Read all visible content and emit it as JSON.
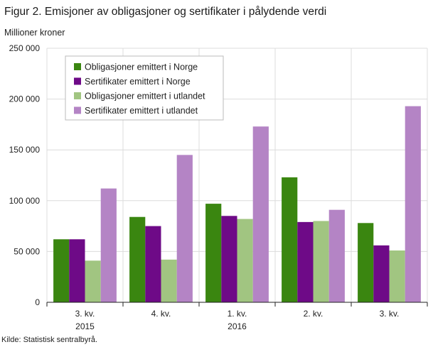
{
  "title": "Figur 2. Emisjoner av obligasjoner og sertifikater i pålydende verdi",
  "source": "Kilde: Statistisk sentralbyrå.",
  "chart_data": {
    "type": "bar",
    "ylabel": "Millioner  kroner",
    "xlabel": "",
    "ylim": [
      0,
      250000
    ],
    "yticks": [
      0,
      50000,
      100000,
      150000,
      200000,
      250000
    ],
    "ytick_labels": [
      "0",
      "50 000",
      "100 000",
      "150 000",
      "200 000",
      "250 000"
    ],
    "categories": [
      {
        "label": "3. kv.",
        "year": "2015"
      },
      {
        "label": "4. kv.",
        "year": ""
      },
      {
        "label": "1. kv.",
        "year": "2016"
      },
      {
        "label": "2. kv.",
        "year": ""
      },
      {
        "label": "3. kv.",
        "year": ""
      }
    ],
    "grid": true,
    "legend_position": "top-left",
    "series": [
      {
        "name": "Obligasjoner emittert i Norge",
        "color": "#3a8610",
        "values": [
          62000,
          84000,
          97000,
          123000,
          78000
        ]
      },
      {
        "name": "Sertifikater emittert i Norge",
        "color": "#6e0a87",
        "values": [
          62000,
          75000,
          85000,
          79000,
          56000
        ]
      },
      {
        "name": "Obligasjoner emittert i utlandet",
        "color": "#a1c581",
        "values": [
          41000,
          42000,
          82000,
          80000,
          51000
        ]
      },
      {
        "name": "Sertifikater emittert i utlandet",
        "color": "#b484c5",
        "values": [
          112000,
          145000,
          173000,
          91000,
          193000
        ]
      }
    ]
  }
}
